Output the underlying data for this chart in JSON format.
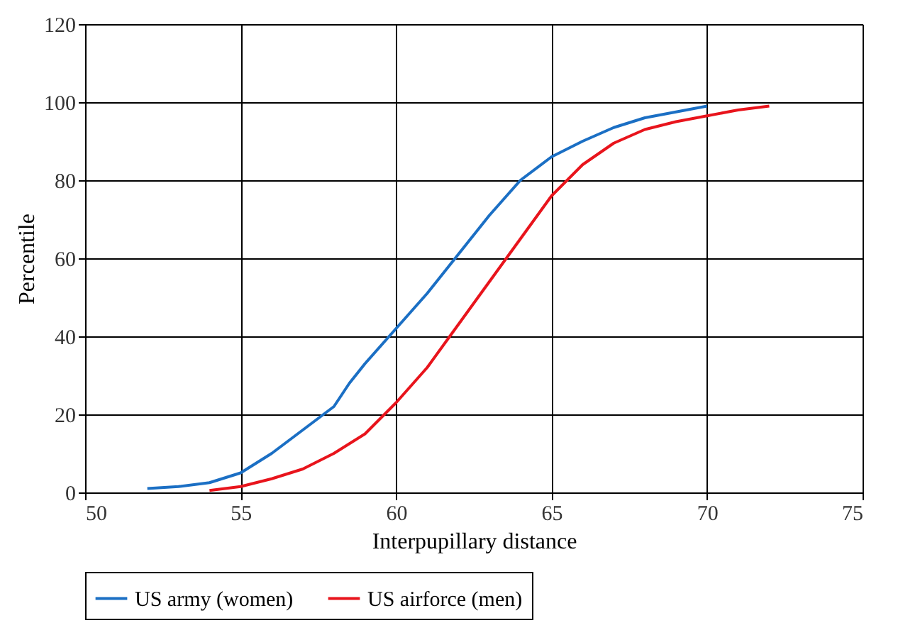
{
  "chart_data": {
    "type": "line",
    "xlabel": "Interpupillary distance",
    "ylabel": "Percentile",
    "xlim": [
      50,
      75
    ],
    "xticks": [
      50,
      55,
      60,
      65,
      70,
      75
    ],
    "ylim": [
      0,
      120
    ],
    "yticks": [
      0,
      20,
      40,
      60,
      80,
      100,
      120
    ],
    "grid": true,
    "legend": "bottom",
    "marker": "none",
    "line_style": "solid",
    "series": [
      {
        "name": "US army (women)",
        "color": "#1b6fc4",
        "x": [
          52,
          53,
          54,
          55,
          56,
          57,
          58,
          58.5,
          59,
          60,
          61,
          62,
          63,
          64,
          65,
          66,
          67,
          68,
          69,
          70
        ],
        "values": [
          1,
          1.5,
          2.5,
          5,
          10,
          16,
          22,
          28,
          33,
          42,
          51,
          61,
          71,
          80,
          86,
          90,
          93.5,
          96,
          97.5,
          99
        ]
      },
      {
        "name": "US airforce (men)",
        "color": "#e8141c",
        "x": [
          54,
          55,
          56,
          57,
          58,
          59,
          60,
          61,
          62,
          63,
          64,
          65,
          66,
          67,
          68,
          69,
          70,
          71,
          72
        ],
        "values": [
          0.5,
          1.5,
          3.5,
          6,
          10,
          15,
          23,
          32,
          43,
          54,
          65,
          76,
          84,
          89.5,
          93,
          95,
          96.5,
          98,
          99
        ]
      }
    ]
  }
}
